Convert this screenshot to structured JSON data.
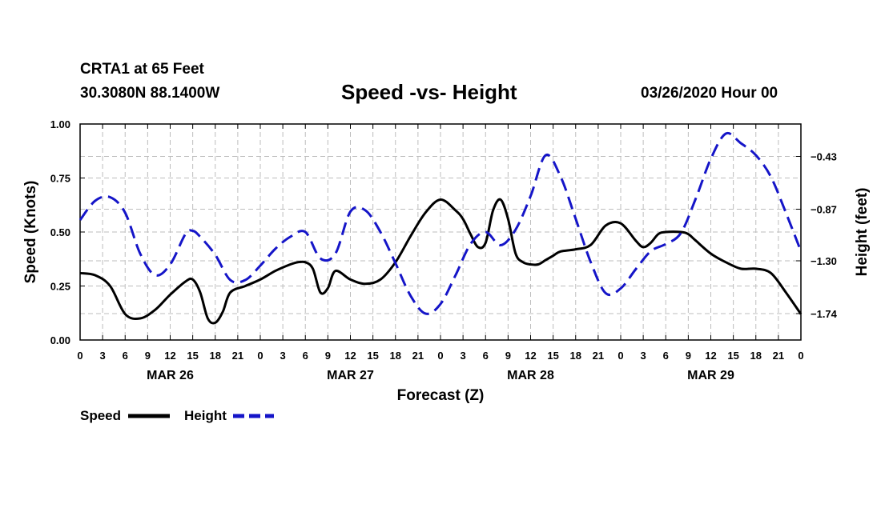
{
  "header": {
    "station": "CRTA1 at 65 Feet",
    "coords": "30.3080N 88.1400W",
    "title": "Speed -vs- Height",
    "timestamp": "03/26/2020 Hour 00"
  },
  "colors": {
    "speed": "#000000",
    "height": "#1515c8",
    "grid": "#bdbdbd"
  },
  "chart_data": {
    "type": "line",
    "title": "Speed -vs- Height",
    "xlabel": "Forecast (Z)",
    "ylabel": "Speed (Knots)",
    "y2label": "Height (feet)",
    "xlim": [
      0,
      96
    ],
    "ylim": [
      0,
      1.0
    ],
    "y2lim": [
      -1.96,
      -0.16
    ],
    "x_tick_values": [
      0,
      3,
      6,
      9,
      12,
      15,
      18,
      21,
      24,
      27,
      30,
      33,
      36,
      39,
      42,
      45,
      48,
      51,
      54,
      57,
      60,
      63,
      66,
      69,
      72,
      75,
      78,
      81,
      84,
      87,
      90,
      93,
      96
    ],
    "x_tick_labels": [
      "0",
      "3",
      "6",
      "9",
      "12",
      "15",
      "18",
      "21",
      "0",
      "3",
      "6",
      "9",
      "12",
      "15",
      "18",
      "21",
      "0",
      "3",
      "6",
      "9",
      "12",
      "15",
      "18",
      "21",
      "0",
      "3",
      "6",
      "9",
      "12",
      "15",
      "18",
      "21",
      "0"
    ],
    "day_labels": [
      {
        "label": "MAR 26",
        "x": 12
      },
      {
        "label": "MAR 27",
        "x": 36
      },
      {
        "label": "MAR 28",
        "x": 60
      },
      {
        "label": "MAR 29",
        "x": 84
      }
    ],
    "y_ticks": [
      0.0,
      0.25,
      0.5,
      0.75,
      1.0
    ],
    "y_tick_labels": [
      "0.00",
      "0.25",
      "0.50",
      "0.75",
      "1.00"
    ],
    "y2_ticks": [
      -1.74,
      -1.3,
      -0.87,
      -0.43
    ],
    "y2_tick_labels": [
      "−1.74",
      "−1.30",
      "−0.87",
      "−0.43"
    ],
    "series": [
      {
        "name": "Speed",
        "axis": "left",
        "style": "solid",
        "x": [
          0,
          2,
          4,
          6,
          8,
          10,
          12,
          14,
          15,
          16,
          17,
          18,
          19,
          20,
          22,
          24,
          26,
          28,
          29,
          30,
          31,
          32,
          33,
          34,
          36,
          38,
          40,
          42,
          44,
          46,
          48,
          50,
          51,
          52,
          53,
          54,
          55,
          56,
          57,
          58,
          59,
          60,
          61,
          62,
          63,
          64,
          66,
          68,
          70,
          72,
          74,
          75,
          76,
          77,
          78,
          80,
          81,
          82,
          84,
          86,
          88,
          90,
          92,
          94,
          96
        ],
        "values": [
          0.31,
          0.3,
          0.25,
          0.12,
          0.1,
          0.14,
          0.21,
          0.27,
          0.28,
          0.22,
          0.1,
          0.08,
          0.13,
          0.22,
          0.25,
          0.28,
          0.32,
          0.35,
          0.36,
          0.36,
          0.33,
          0.22,
          0.24,
          0.32,
          0.28,
          0.26,
          0.28,
          0.36,
          0.48,
          0.59,
          0.65,
          0.6,
          0.56,
          0.49,
          0.43,
          0.45,
          0.6,
          0.65,
          0.56,
          0.4,
          0.36,
          0.35,
          0.35,
          0.37,
          0.39,
          0.41,
          0.42,
          0.44,
          0.53,
          0.54,
          0.46,
          0.43,
          0.45,
          0.49,
          0.5,
          0.5,
          0.49,
          0.46,
          0.4,
          0.36,
          0.33,
          0.33,
          0.31,
          0.22,
          0.12
        ]
      },
      {
        "name": "Height",
        "axis": "right",
        "style": "dashed",
        "x": [
          0,
          2,
          4,
          6,
          8,
          10,
          12,
          14,
          15,
          16,
          18,
          20,
          22,
          24,
          26,
          28,
          30,
          32,
          34,
          36,
          38,
          40,
          42,
          44,
          46,
          48,
          50,
          52,
          54,
          56,
          58,
          60,
          62,
          64,
          66,
          68,
          70,
          72,
          74,
          76,
          78,
          80,
          82,
          84,
          86,
          88,
          90,
          92,
          94,
          96
        ],
        "values": [
          -0.96,
          -0.8,
          -0.77,
          -0.9,
          -1.24,
          -1.42,
          -1.33,
          -1.08,
          -1.05,
          -1.1,
          -1.25,
          -1.46,
          -1.46,
          -1.34,
          -1.2,
          -1.1,
          -1.06,
          -1.28,
          -1.24,
          -0.89,
          -0.88,
          -1.06,
          -1.32,
          -1.59,
          -1.74,
          -1.66,
          -1.42,
          -1.16,
          -1.06,
          -1.17,
          -1.04,
          -0.76,
          -0.42,
          -0.6,
          -0.95,
          -1.31,
          -1.57,
          -1.53,
          -1.37,
          -1.22,
          -1.16,
          -1.07,
          -0.78,
          -0.45,
          -0.24,
          -0.32,
          -0.42,
          -0.6,
          -0.9,
          -1.22
        ]
      }
    ],
    "legend": [
      {
        "label": "Speed",
        "style": "solid"
      },
      {
        "label": "Height",
        "style": "dashed"
      }
    ]
  }
}
